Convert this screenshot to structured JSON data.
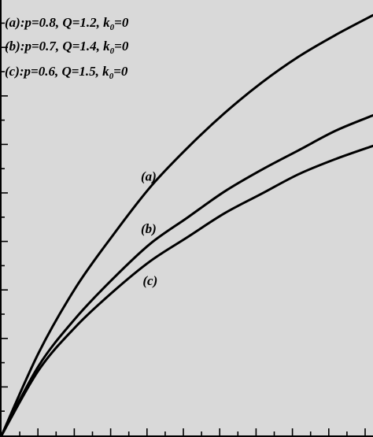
{
  "chart_data": {
    "type": "line",
    "title": "",
    "xlabel": "",
    "ylabel": "",
    "xlim": [
      0,
      1
    ],
    "ylim": [
      0,
      1
    ],
    "grid": false,
    "legend_placement": "top-left",
    "colors": {
      "background": "#d9d9d9",
      "line": "#000000"
    },
    "series": [
      {
        "name": "(a)",
        "legend": {
          "prefix": "(a):p=0.8,  Q=1.2,  k",
          "subscript": "0",
          "suffix": "=0"
        },
        "points": [
          [
            0,
            0
          ],
          [
            0.1,
            0.19
          ],
          [
            0.2,
            0.34
          ],
          [
            0.3,
            0.46
          ],
          [
            0.4,
            0.57
          ],
          [
            0.5,
            0.66
          ],
          [
            0.6,
            0.74
          ],
          [
            0.7,
            0.81
          ],
          [
            0.8,
            0.87
          ],
          [
            0.9,
            0.92
          ],
          [
            1.0,
            0.965
          ]
        ]
      },
      {
        "name": "(b)",
        "legend": {
          "prefix": "(b):p=0.7,  Q=1.4,  k",
          "subscript": "0",
          "suffix": "=0"
        },
        "points": [
          [
            0,
            0
          ],
          [
            0.1,
            0.16
          ],
          [
            0.2,
            0.27
          ],
          [
            0.3,
            0.36
          ],
          [
            0.4,
            0.44
          ],
          [
            0.5,
            0.5
          ],
          [
            0.6,
            0.56
          ],
          [
            0.7,
            0.61
          ],
          [
            0.8,
            0.655
          ],
          [
            0.9,
            0.7
          ],
          [
            1.0,
            0.735
          ]
        ]
      },
      {
        "name": "(c)",
        "legend": {
          "prefix": "(c):p=0.6,  Q=1.5,  k",
          "subscript": "0",
          "suffix": "=0"
        },
        "points": [
          [
            0,
            0
          ],
          [
            0.1,
            0.15
          ],
          [
            0.2,
            0.25
          ],
          [
            0.3,
            0.33
          ],
          [
            0.4,
            0.4
          ],
          [
            0.5,
            0.455
          ],
          [
            0.6,
            0.51
          ],
          [
            0.7,
            0.555
          ],
          [
            0.8,
            0.6
          ],
          [
            0.9,
            0.635
          ],
          [
            1.0,
            0.665
          ]
        ]
      }
    ],
    "annotations": [
      {
        "text": "(a)",
        "x": 0.375,
        "y": 0.585
      },
      {
        "text": "(b)",
        "x": 0.375,
        "y": 0.465
      },
      {
        "text": "(c)",
        "x": 0.38,
        "y": 0.345
      }
    ]
  }
}
